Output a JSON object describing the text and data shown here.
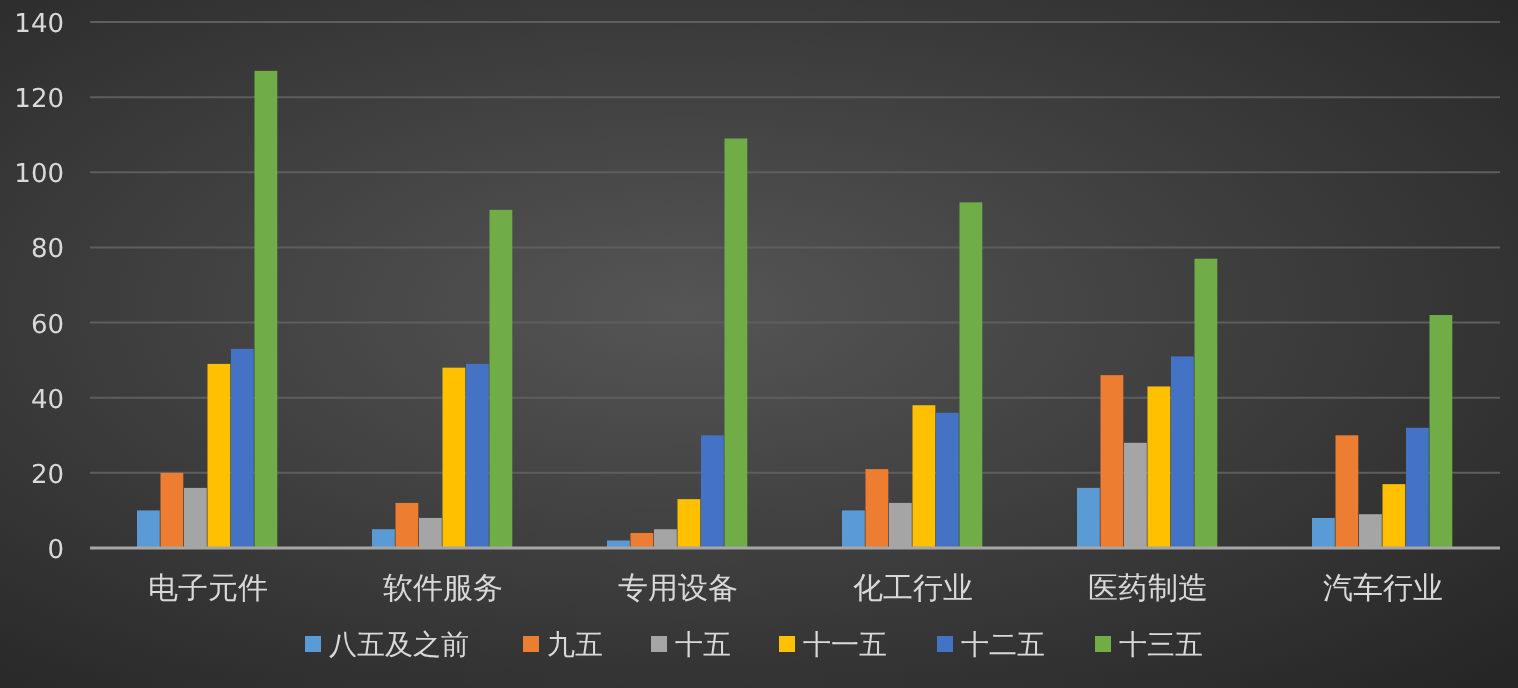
{
  "chart_data": {
    "type": "bar",
    "categories": [
      "电子元件",
      "软件服务",
      "专用设备",
      "化工行业",
      "医药制造",
      "汽车行业"
    ],
    "series": [
      {
        "name": "八五及之前",
        "color": "#5b9bd5",
        "values": [
          10,
          5,
          2,
          10,
          16,
          8
        ]
      },
      {
        "name": "九五",
        "color": "#ed7d31",
        "values": [
          20,
          12,
          4,
          21,
          46,
          30
        ]
      },
      {
        "name": "十五",
        "color": "#a5a5a5",
        "values": [
          16,
          8,
          5,
          12,
          28,
          9
        ]
      },
      {
        "name": "十一五",
        "color": "#ffc000",
        "values": [
          49,
          48,
          13,
          38,
          43,
          17
        ]
      },
      {
        "name": "十二五",
        "color": "#4472c4",
        "values": [
          53,
          49,
          30,
          36,
          51,
          32
        ]
      },
      {
        "name": "十三五",
        "color": "#70ad47",
        "values": [
          127,
          90,
          109,
          92,
          77,
          62
        ]
      }
    ],
    "ylim": [
      0,
      140
    ],
    "yticks": [
      0,
      20,
      40,
      60,
      80,
      100,
      120,
      140
    ],
    "grid": "y",
    "legend": "bottom"
  }
}
